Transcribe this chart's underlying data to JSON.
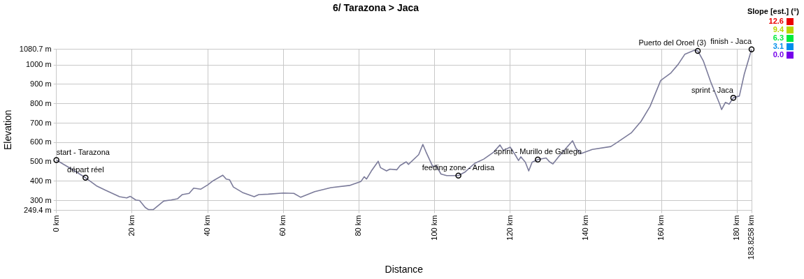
{
  "chart_data": {
    "type": "line",
    "title": "6/ Tarazona > Jaca",
    "xlabel": "Distance",
    "ylabel": "Elevation",
    "clabel": "Slope [est.] (°)",
    "cticks": [
      {
        "value": 0,
        "label": "0.0"
      },
      3.1,
      6.3,
      9.4,
      12.6
    ],
    "xlim": [
      0,
      183.8258
    ],
    "xticks": [
      {
        "value": 0,
        "label": "0 km"
      },
      {
        "value": 20,
        "label": "20 km"
      },
      {
        "value": 40,
        "label": "40 km"
      },
      {
        "value": 60,
        "label": "60 km"
      },
      {
        "value": 80,
        "label": "80 km"
      },
      {
        "value": 100,
        "label": "100 km"
      },
      {
        "value": 120,
        "label": "120 km"
      },
      {
        "value": 140,
        "label": "140 km"
      },
      {
        "value": 160,
        "label": "160 km"
      },
      {
        "value": 180,
        "label": "180 km"
      },
      {
        "value": 183.8258,
        "label": "183.8258 km"
      }
    ],
    "ylim": [
      249.4,
      1080.7
    ],
    "yticks": [
      {
        "value": 249.4,
        "label": "249.4 m"
      },
      {
        "value": 300,
        "label": "300 m"
      },
      {
        "value": 400,
        "label": "400 m"
      },
      {
        "value": 500,
        "label": "500 m"
      },
      {
        "value": 600,
        "label": "600 m"
      },
      {
        "value": 700,
        "label": "700 m"
      },
      {
        "value": 800,
        "label": "800 m"
      },
      {
        "value": 900,
        "label": "900 m"
      },
      {
        "value": 1000,
        "label": "1000 m"
      },
      {
        "value": 1080.7,
        "label": "1080.7 m"
      }
    ],
    "grid": true,
    "legend": false,
    "marker": "none",
    "line_style": "solid",
    "series": [
      {
        "color": "#7b7b9a",
        "x": [
          0,
          3.9,
          7.7,
          10.6,
          13,
          16.7,
          18.6,
          19.5,
          21,
          22,
          23.5,
          24.4,
          25.6,
          28.4,
          30.3,
          32,
          33.3,
          35.1,
          36.3,
          38.2,
          40,
          41.5,
          44,
          44.9,
          45.8,
          46.8,
          49.2,
          52.3,
          53.5,
          56,
          60,
          62.8,
          64.6,
          68.3,
          72.6,
          77.5,
          80.5,
          81.4,
          82,
          83.3,
          85.1,
          85.7,
          87.3,
          88.2,
          90,
          90.9,
          92.5,
          93.1,
          95.8,
          96.9,
          97.7,
          99.5,
          100.4,
          101.7,
          103.2,
          106.3,
          108.1,
          110.6,
          113,
          115.5,
          117.3,
          118.2,
          120,
          121.3,
          122.2,
          122.8,
          124,
          124.9,
          125.8,
          127.3,
          129.5,
          130.4,
          131.3,
          132.8,
          136.5,
          137.4,
          138.7,
          141.7,
          146.6,
          148.5,
          152.1,
          154.6,
          157,
          159.8,
          162.5,
          164.4,
          166.2,
          168.7,
          169.6,
          171.1,
          173,
          175.4,
          175.9,
          176.9,
          177.9,
          179,
          180.6,
          181.9,
          183.8258
        ],
        "values": [
          509,
          464,
          418,
          376,
          353,
          320,
          314,
          322,
          303,
          300,
          264,
          253,
          253,
          298,
          303,
          309,
          331,
          337,
          364,
          359,
          381,
          403,
          431,
          411,
          407,
          370,
          342,
          320,
          331,
          333,
          339,
          337,
          317,
          346,
          367,
          378,
          398,
          423,
          411,
          453,
          503,
          470,
          453,
          462,
          459,
          481,
          500,
          487,
          537,
          590,
          553,
          476,
          481,
          437,
          429,
          429,
          448,
          492,
          514,
          548,
          587,
          559,
          576,
          537,
          507,
          526,
          498,
          453,
          498,
          512,
          520,
          500,
          489,
          526,
          609,
          570,
          542,
          564,
          579,
          603,
          651,
          709,
          787,
          920,
          959,
          1003,
          1056,
          1076,
          1073,
          1020,
          914,
          798,
          770,
          807,
          798,
          831,
          840,
          953,
          1080.7
        ]
      }
    ],
    "annotations": [
      {
        "text": "start - Tarazona",
        "x": 0,
        "y": 509
      },
      {
        "text": "départ réel",
        "x": 7.7,
        "y": 418
      },
      {
        "text": "feeding zone - Ardisa",
        "x": 106.3,
        "y": 429
      },
      {
        "text": "sprint - Murillo de Gallego",
        "x": 127.3,
        "y": 512
      },
      {
        "text": "Puerto del Oroel (3)",
        "x": 169.6,
        "y": 1073
      },
      {
        "text": "sprint - Jaca",
        "x": 179,
        "y": 831
      },
      {
        "text": "finish - Jaca",
        "x": 183.8258,
        "y": 1080.7
      }
    ]
  }
}
